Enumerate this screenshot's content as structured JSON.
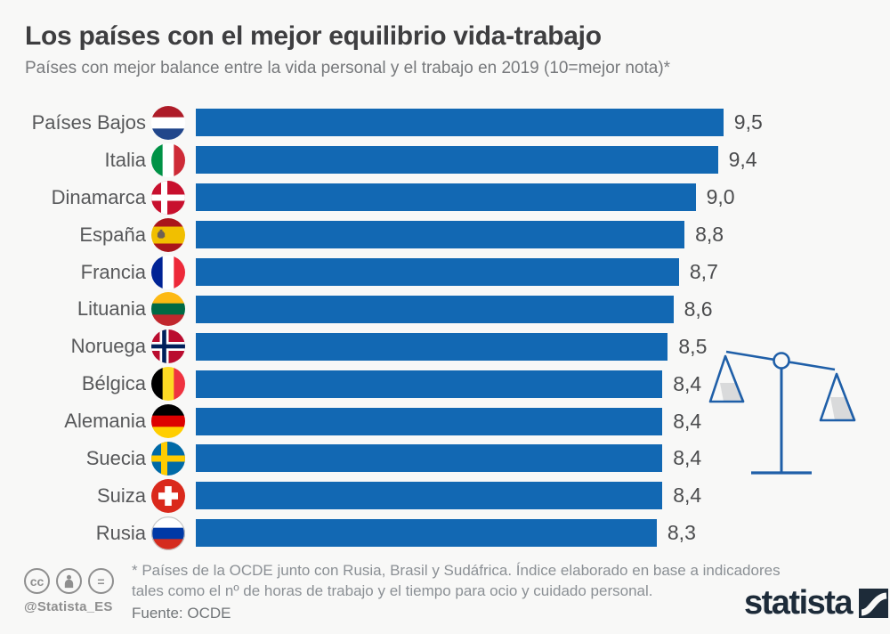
{
  "header": {
    "title": "Los países con el mejor equilibrio vida-trabajo",
    "subtitle": "Países con mejor balance entre la vida personal y el trabajo en 2019 (10=mejor nota)*"
  },
  "chart_data": {
    "type": "bar",
    "orientation": "horizontal",
    "title": "Los países con el mejor equilibrio vida-trabajo",
    "xlabel": "",
    "ylabel": "",
    "xlim": [
      0,
      10
    ],
    "grid": false,
    "legend": false,
    "bar_color": "#1268b3",
    "categories": [
      "Países Bajos",
      "Italia",
      "Dinamarca",
      "España",
      "Francia",
      "Lituania",
      "Noruega",
      "Bélgica",
      "Alemania",
      "Suecia",
      "Suiza",
      "Rusia"
    ],
    "values": [
      9.5,
      9.4,
      9.0,
      8.8,
      8.7,
      8.6,
      8.5,
      8.4,
      8.4,
      8.4,
      8.4,
      8.3
    ],
    "value_labels": [
      "9,5",
      "9,4",
      "9,0",
      "8,8",
      "8,7",
      "8,6",
      "8,5",
      "8,4",
      "8,4",
      "8,4",
      "8,4",
      "8,3"
    ],
    "flag_icons": [
      "netherlands",
      "italy",
      "denmark",
      "spain",
      "france",
      "lithuania",
      "norway",
      "belgium",
      "germany",
      "sweden",
      "switzerland",
      "russia"
    ]
  },
  "illustration": {
    "name": "balance-scale",
    "stroke_color": "#1f5fa8",
    "shadow_color": "#d9dadb"
  },
  "footer": {
    "footnote": "* Países de la OCDE junto con Rusia, Brasil y Sudáfrica. Índice elaborado en base a indicadores tales como el nº de horas de trabajo y el tiempo para ocio y cuidado personal.",
    "source": "Fuente: OCDE",
    "cc_labels": {
      "cc": "cc",
      "nd": "="
    },
    "handle": "@Statista_ES",
    "brand": "statista",
    "brand_color": "#1d2b39"
  }
}
